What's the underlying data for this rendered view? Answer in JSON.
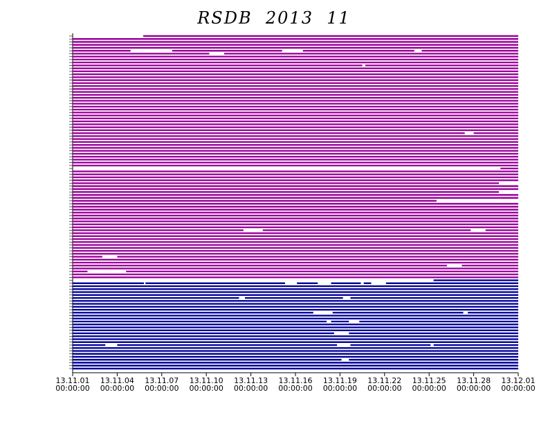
{
  "chart_data": {
    "type": "timeline",
    "title": "RSDB  2013  11",
    "xlim": [
      0,
      30
    ],
    "xticks": [
      {
        "value": 0,
        "label": "13.11.01\n00:00:00"
      },
      {
        "value": 3,
        "label": "13.11.04\n00:00:00"
      },
      {
        "value": 6,
        "label": "13.11.07\n00:00:00"
      },
      {
        "value": 9,
        "label": "13.11.10\n00:00:00"
      },
      {
        "value": 12,
        "label": "13.11.13\n00:00:00"
      },
      {
        "value": 15,
        "label": "13.11.16\n00:00:00"
      },
      {
        "value": 18,
        "label": "13.11.19\n00:00:00"
      },
      {
        "value": 21,
        "label": "13.11.22\n00:00:00"
      },
      {
        "value": 24,
        "label": "13.11.25\n00:00:00"
      },
      {
        "value": 27,
        "label": "13.11.28\n00:00:00"
      },
      {
        "value": 30,
        "label": "13.12.01\n00:00:00"
      }
    ],
    "groups": [
      {
        "color": "#990099",
        "rows": [
          [
            [
              4.75,
              30
            ]
          ],
          [
            [
              0,
              30
            ]
          ],
          [
            [
              0,
              30
            ]
          ],
          [
            [
              0,
              30
            ]
          ],
          [
            [
              0,
              30
            ]
          ],
          [
            [
              0,
              3.9
            ],
            [
              6.7,
              14.1
            ],
            [
              15.5,
              23
            ],
            [
              23.5,
              30
            ]
          ],
          [
            [
              0,
              9.2
            ],
            [
              10.2,
              30
            ]
          ],
          [
            [
              0,
              30
            ]
          ],
          [
            [
              0,
              30
            ]
          ],
          [
            [
              0,
              30
            ]
          ],
          [
            [
              0,
              19.5
            ],
            [
              19.7,
              30
            ]
          ],
          [
            [
              0,
              30
            ]
          ],
          [
            [
              0,
              30
            ]
          ],
          [
            [
              0,
              30
            ]
          ],
          [
            [
              0,
              30
            ]
          ],
          [
            [
              0,
              30
            ]
          ],
          [
            [
              0,
              30
            ]
          ],
          [
            [
              0,
              30
            ]
          ],
          [
            [
              0,
              30
            ]
          ],
          [
            [
              0,
              30
            ]
          ],
          [
            [
              0,
              30
            ]
          ],
          [
            [
              0,
              30
            ]
          ],
          [
            [
              0,
              30
            ]
          ],
          [
            [
              0,
              30
            ]
          ],
          [
            [
              0,
              30
            ]
          ],
          [
            [
              0,
              30
            ]
          ],
          [
            [
              0,
              30
            ]
          ],
          [
            [
              0,
              30
            ]
          ],
          [
            [
              0,
              30
            ]
          ],
          [
            [
              0,
              30
            ]
          ],
          [
            [
              0,
              30
            ]
          ],
          [
            [
              0,
              30
            ]
          ],
          [
            [
              0,
              30
            ]
          ],
          [
            [
              0,
              26.4
            ],
            [
              27,
              30
            ]
          ],
          [
            [
              0,
              30
            ]
          ],
          [
            [
              0,
              30
            ]
          ],
          [
            [
              0,
              30
            ]
          ],
          [
            [
              0,
              30
            ]
          ],
          [
            [
              0,
              30
            ]
          ],
          [
            [
              0,
              30
            ]
          ],
          [
            [
              0,
              30
            ]
          ],
          [
            [
              0,
              30
            ]
          ],
          [
            [
              0,
              30
            ]
          ],
          [
            [
              0,
              30
            ]
          ],
          [
            [
              0,
              30
            ]
          ],
          [
            [
              28.8,
              30
            ]
          ],
          [
            [
              0,
              30
            ]
          ],
          [
            [
              0,
              30
            ]
          ],
          [
            [
              0,
              30
            ]
          ],
          [
            [
              0,
              30
            ]
          ],
          [
            [
              0,
              28.7
            ]
          ],
          [
            [
              0,
              30
            ]
          ],
          [
            [
              0,
              30
            ]
          ],
          [
            [
              0,
              28.7
            ]
          ],
          [
            [
              0,
              30
            ]
          ],
          [
            [
              0,
              30
            ]
          ],
          [
            [
              0,
              24.5
            ]
          ],
          [
            [
              0,
              30
            ]
          ],
          [
            [
              0,
              30
            ]
          ],
          [
            [
              0,
              30
            ]
          ],
          [
            [
              0,
              30
            ]
          ],
          [
            [
              0,
              30
            ]
          ],
          [
            [
              0,
              30
            ]
          ],
          [
            [
              0,
              30
            ]
          ],
          [
            [
              0,
              30
            ]
          ],
          [
            [
              0,
              30
            ]
          ],
          [
            [
              0,
              11.5
            ],
            [
              12.8,
              26.8
            ],
            [
              27.8,
              30
            ]
          ],
          [
            [
              0,
              30
            ]
          ],
          [
            [
              0,
              30
            ]
          ],
          [
            [
              0,
              30
            ]
          ],
          [
            [
              0,
              30
            ]
          ],
          [
            [
              0,
              30
            ]
          ],
          [
            [
              0,
              30
            ]
          ],
          [
            [
              0,
              30
            ]
          ],
          [
            [
              0,
              30
            ]
          ],
          [
            [
              0,
              2
            ],
            [
              3,
              30
            ]
          ],
          [
            [
              0,
              30
            ]
          ],
          [
            [
              0,
              30
            ]
          ],
          [
            [
              0,
              25.2
            ],
            [
              26.2,
              30
            ]
          ],
          [
            [
              0,
              30
            ]
          ],
          [
            [
              0,
              1
            ],
            [
              3.6,
              30
            ]
          ],
          [
            [
              0,
              30
            ]
          ],
          [
            [
              0,
              30
            ]
          ]
        ]
      },
      {
        "color": "#000099",
        "rows": [
          [
            [
              24.3,
              30
            ]
          ],
          [
            [
              0,
              4.8
            ],
            [
              4.9,
              14.3
            ],
            [
              15.1,
              16.5
            ],
            [
              17.4,
              19.4
            ],
            [
              19.6,
              20.1
            ],
            [
              21.1,
              30
            ]
          ],
          [
            [
              0,
              30
            ]
          ],
          [
            [
              0,
              30
            ]
          ],
          [
            [
              0,
              30
            ]
          ],
          [
            [
              0,
              30
            ]
          ],
          [
            [
              0,
              11.2
            ],
            [
              11.6,
              18.2
            ],
            [
              18.7,
              30
            ]
          ],
          [
            [
              0,
              30
            ]
          ],
          [
            [
              0,
              30
            ]
          ],
          [
            [
              0,
              30
            ]
          ],
          [
            [
              0,
              30
            ]
          ],
          [
            [
              0,
              16.2
            ],
            [
              17.5,
              26.3
            ],
            [
              26.6,
              30
            ]
          ],
          [
            [
              0,
              30
            ]
          ],
          [
            [
              0,
              30
            ]
          ],
          [
            [
              0,
              17.1
            ],
            [
              17.4,
              18.6
            ],
            [
              19.3,
              30
            ]
          ],
          [
            [
              0,
              30
            ]
          ],
          [
            [
              0,
              30
            ]
          ],
          [
            [
              0,
              30
            ]
          ],
          [
            [
              0,
              17.6
            ],
            [
              18.6,
              30
            ]
          ],
          [
            [
              0,
              30
            ]
          ],
          [
            [
              0,
              30
            ]
          ],
          [
            [
              0,
              30
            ]
          ],
          [
            [
              0,
              2.2
            ],
            [
              3,
              17.8
            ],
            [
              18.7,
              24.1
            ],
            [
              24.3,
              30
            ]
          ],
          [
            [
              0,
              30
            ]
          ],
          [
            [
              0,
              30
            ]
          ],
          [
            [
              0,
              30
            ]
          ],
          [
            [
              0,
              30
            ]
          ],
          [
            [
              0,
              18.1
            ],
            [
              18.6,
              30
            ]
          ],
          [
            [
              0,
              30
            ]
          ],
          [
            [
              0,
              30
            ]
          ],
          [
            [
              0,
              30
            ]
          ]
        ]
      }
    ]
  }
}
